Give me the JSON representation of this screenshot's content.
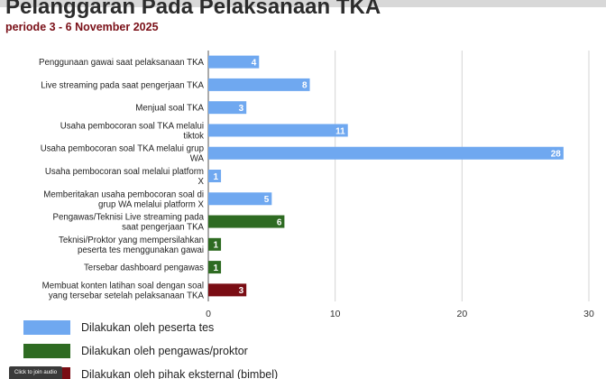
{
  "title": "Pelanggaran Pada Pelaksanaan TKA",
  "subtitle": "periode 3 - 6 November 2025",
  "chart_data": {
    "type": "bar",
    "orientation": "horizontal",
    "categories": [
      "Penggunaan gawai saat pelaksanaan TKA",
      "Live streaming pada saat pengerjaan TKA",
      "Menjual soal TKA",
      "Usaha pembocoran soal TKA melalui tiktok",
      "Usaha pembocoran soal TKA melalui grup WA",
      "Usaha pembocoran soal melalui platform X",
      "Memberitakan usaha pembocoran soal di grup WA melalui platform X",
      "Pengawas/Teknisi Live streaming pada saat pengerjaan TKA",
      "Teknisi/Proktor yang mempersilahkan peserta tes menggunakan gawai",
      "Tersebar dashboard pengawas",
      "Membuat konten latihan soal dengan soal yang tersebar setelah pelaksanaan TKA"
    ],
    "category_lines": [
      [
        "Penggunaan gawai saat pelaksanaan TKA"
      ],
      [
        "Live streaming pada saat pengerjaan TKA"
      ],
      [
        "Menjual soal TKA"
      ],
      [
        "Usaha pembocoran soal TKA melalui",
        "tiktok"
      ],
      [
        "Usaha pembocoran soal TKA melalui grup",
        "WA"
      ],
      [
        "Usaha pembocoran soal melalui platform",
        "X"
      ],
      [
        "Memberitakan usaha pembocoran soal di",
        "grup WA melalui platform X"
      ],
      [
        "Pengawas/Teknisi Live streaming pada",
        "saat pengerjaan TKA"
      ],
      [
        "Teknisi/Proktor yang mempersilahkan",
        "peserta tes menggunakan gawai"
      ],
      [
        "Tersebar dashboard pengawas"
      ],
      [
        "Membuat konten latihan soal dengan soal",
        "yang tersebar setelah pelaksanaan TKA"
      ]
    ],
    "values": [
      4,
      8,
      3,
      11,
      28,
      1,
      5,
      6,
      1,
      1,
      3
    ],
    "groups": [
      0,
      0,
      0,
      0,
      0,
      0,
      0,
      1,
      1,
      1,
      2
    ],
    "xlim": [
      0,
      30
    ],
    "xticks": [
      0,
      10,
      20,
      30
    ],
    "grid": true,
    "legend": [
      {
        "name": "Dilakukan oleh peserta tes",
        "color": "#6fa8f0"
      },
      {
        "name": "Dilakukan oleh pengawas/proktor",
        "color": "#2e6b22"
      },
      {
        "name": "Dilakukan oleh pihak eksternal (bimbel)",
        "color": "#7a0d14"
      }
    ],
    "legend_position": "bottom-left"
  },
  "overlay": {
    "join_audio": "Click to join audio"
  }
}
